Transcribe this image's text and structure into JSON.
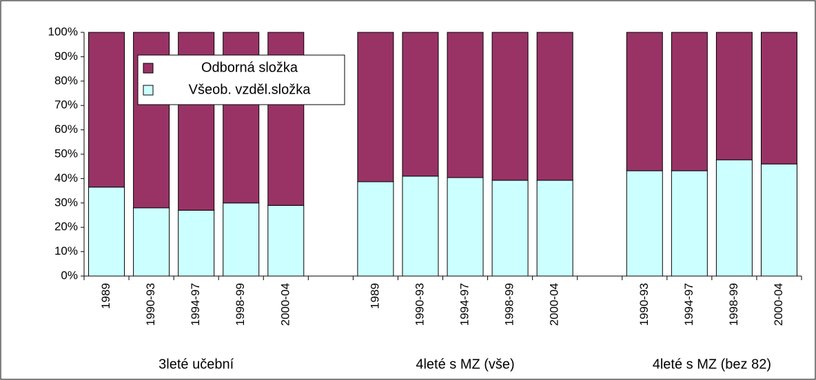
{
  "chart_data": {
    "type": "stacked_bar_100",
    "categories": [
      "1989",
      "1990-93",
      "1994-97",
      "1998-99",
      "2000-04",
      null,
      "1989",
      "1990-93",
      "1994-97",
      "1998-99",
      "2000-04",
      null,
      "1990-93",
      "1994-97",
      "1998-99",
      "2000-04"
    ],
    "groups": [
      "3leté učební",
      "4leté s MZ (vše)",
      "4leté s MZ (bez 82)"
    ],
    "series": [
      {
        "name": "Všeob. vzděl.složka",
        "color": "#ccffff",
        "values": [
          36.5,
          28,
          27,
          30,
          29,
          null,
          38.7,
          41,
          40.4,
          39.3,
          39.3,
          null,
          43.2,
          43.2,
          47.7,
          46
        ]
      },
      {
        "name": "Odborná složka",
        "color": "#993366",
        "values": [
          63.5,
          72,
          73,
          70,
          71,
          null,
          61.3,
          59,
          59.6,
          60.7,
          60.7,
          null,
          56.8,
          56.8,
          52.3,
          54
        ]
      }
    ],
    "ylim": [
      0,
      100
    ],
    "yticks": [
      {
        "value": 0,
        "label": "0%"
      },
      {
        "value": 10,
        "label": "10%"
      },
      {
        "value": 20,
        "label": "20%"
      },
      {
        "value": 30,
        "label": "30%"
      },
      {
        "value": 40,
        "label": "40%"
      },
      {
        "value": 50,
        "label": "50%"
      },
      {
        "value": 60,
        "label": "60%"
      },
      {
        "value": 70,
        "label": "70%"
      },
      {
        "value": 80,
        "label": "80%"
      },
      {
        "value": 90,
        "label": "90%"
      },
      {
        "value": 100,
        "label": "100%"
      }
    ],
    "legend": "top-left"
  }
}
